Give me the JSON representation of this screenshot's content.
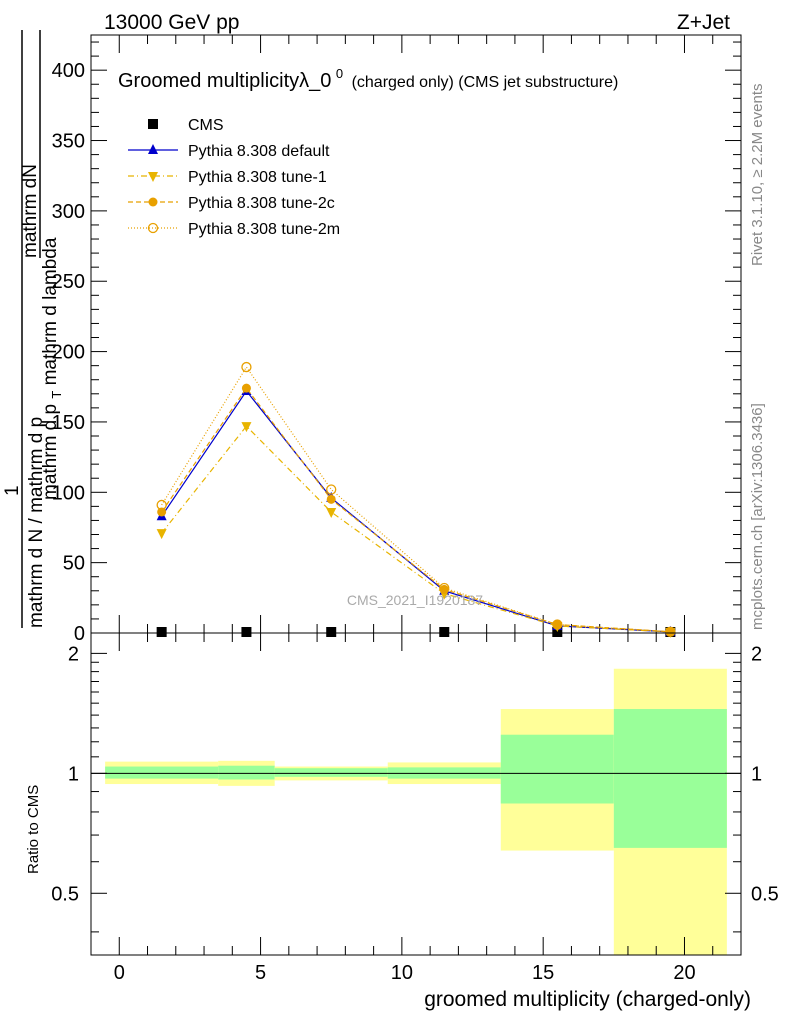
{
  "header": {
    "left": "13000 GeV pp",
    "right": "Z+Jet"
  },
  "side_labels": {
    "rivet": "Rivet 3.1.10, ≥ 2.2M events",
    "mcplots": "mcplots.cern.ch [arXiv:1306.3436]"
  },
  "watermark": "CMS_2021_I1920187",
  "chart_data": [
    {
      "type": "line",
      "title_main": "Groomed multiplicityλ_0",
      "title_sup": "0",
      "title_suffix": "(charged only) (CMS jet substructure)",
      "ylabel_lines": [
        "mathrm dN",
        "1",
        "mathrm d N / mathrm d p_T mathrm d lambda"
      ],
      "ylabel_top": "mathrm d p",
      "ylabel_numer": "mathrm dN",
      "ylabel_denom_a": "mathrm d N / mathrm d p",
      "ylabel_denom_sub": "T",
      "ylabel_denom_b": "mathrm d p",
      "ylabel_denom_c": "mathrm d lambda",
      "ylabel_one": "1",
      "ylim": [
        0,
        425
      ],
      "yticks": [
        0,
        50,
        100,
        150,
        200,
        250,
        300,
        350,
        400
      ],
      "xlim": [
        -1,
        22
      ],
      "x": [
        1.5,
        4.5,
        7.5,
        11.5,
        15.5,
        19.5
      ],
      "bin_edges": [
        -0.5,
        3.5,
        5.5,
        9.5,
        13.5,
        17.5,
        21.5
      ],
      "legend_placement": "top-left",
      "series": [
        {
          "name": "CMS",
          "marker": "square",
          "color": "#000000",
          "values": [
            0.5,
            0.5,
            0.5,
            0.5,
            0.5,
            0.5
          ]
        },
        {
          "name": "Pythia 8.308 default",
          "marker": "triangle-up",
          "color": "#0000cc",
          "dash": "",
          "values": [
            83,
            172,
            96,
            30,
            5,
            0.8
          ]
        },
        {
          "name": "Pythia 8.308 tune-1",
          "marker": "triangle-down",
          "color": "#e8b400",
          "dash": "6,3,1,3",
          "values": [
            71,
            147,
            86,
            28,
            5,
            0.8
          ]
        },
        {
          "name": "Pythia 8.308 tune-2c",
          "marker": "circle",
          "color": "#e8a000",
          "dash": "5,3",
          "values": [
            86,
            174,
            95,
            31,
            6,
            0.9
          ]
        },
        {
          "name": "Pythia 8.308 tune-2m",
          "marker": "circle-open",
          "color": "#e8a000",
          "dash": "1,2",
          "values": [
            91,
            189,
            102,
            32,
            6,
            0.9
          ]
        }
      ]
    },
    {
      "type": "area",
      "ylabel": "Ratio to CMS",
      "xlabel": "groomed multiplicity (charged-only)",
      "ylim": [
        0.35,
        2.25
      ],
      "yticks": [
        0.5,
        1,
        2
      ],
      "ytick_labels": [
        "0.5",
        "1",
        "2"
      ],
      "xticks": [
        0,
        5,
        10,
        15,
        20
      ],
      "xlim": [
        -1,
        22
      ],
      "bands": [
        {
          "x0": -0.5,
          "x1": 3.5,
          "inner": [
            0.97,
            1.04
          ],
          "outer": [
            0.94,
            1.07
          ]
        },
        {
          "x0": 3.5,
          "x1": 5.5,
          "inner": [
            0.965,
            1.045
          ],
          "outer": [
            0.93,
            1.075
          ]
        },
        {
          "x0": 5.5,
          "x1": 9.5,
          "inner": [
            0.98,
            1.03
          ],
          "outer": [
            0.96,
            1.04
          ]
        },
        {
          "x0": 9.5,
          "x1": 13.5,
          "inner": [
            0.97,
            1.035
          ],
          "outer": [
            0.94,
            1.065
          ]
        },
        {
          "x0": 13.5,
          "x1": 17.5,
          "inner": [
            0.84,
            1.25
          ],
          "outer": [
            0.64,
            1.45
          ]
        },
        {
          "x0": 17.5,
          "x1": 21.5,
          "inner": [
            0.65,
            1.45
          ],
          "outer": [
            0.35,
            1.83
          ]
        }
      ],
      "band_colors": {
        "inner": "#99ff99",
        "outer": "#ffff99"
      }
    }
  ]
}
